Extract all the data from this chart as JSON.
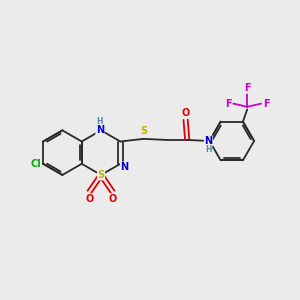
{
  "bg_color": "#ebebeb",
  "bond_color": "#2a2a2a",
  "S_color": "#b8b800",
  "N_color": "#0000cc",
  "O_color": "#dd0000",
  "Cl_color": "#00aa00",
  "F_color": "#cc00cc",
  "H_color": "#5588aa",
  "font_size": 7.0,
  "bond_width": 1.3,
  "hex_r": 0.42,
  "xlim": [
    -2.6,
    3.0
  ],
  "ylim": [
    -1.9,
    2.1
  ]
}
